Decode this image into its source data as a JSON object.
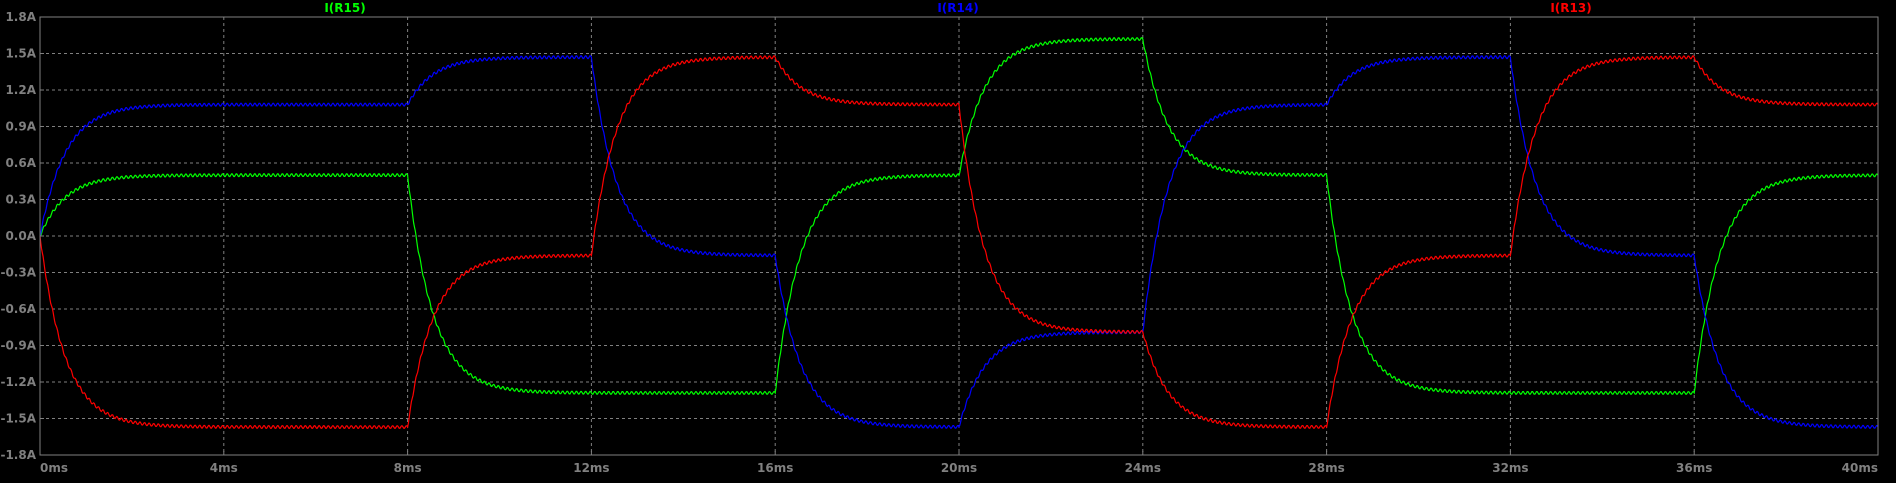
{
  "chart_data": {
    "type": "line",
    "title": "",
    "xlabel": "",
    "ylabel": "",
    "x_unit": "ms",
    "y_unit": "A",
    "xlim": [
      0,
      40
    ],
    "ylim": [
      -1.8,
      1.8
    ],
    "x_ticks": [
      0,
      4,
      8,
      12,
      16,
      20,
      24,
      28,
      32,
      36,
      40
    ],
    "x_tick_labels": [
      "0ms",
      "4ms",
      "8ms",
      "12ms",
      "16ms",
      "20ms",
      "24ms",
      "28ms",
      "32ms",
      "36ms",
      "40ms"
    ],
    "y_ticks": [
      1.8,
      1.5,
      1.2,
      0.9,
      0.6,
      0.3,
      0.0,
      -0.3,
      -0.6,
      -0.9,
      -1.2,
      -1.5,
      -1.8
    ],
    "y_tick_labels": [
      "1.8A",
      "1.5A",
      "1.2A",
      "0.9A",
      "0.6A",
      "0.3A",
      "0.0A",
      "-0.3A",
      "-0.6A",
      "-0.9A",
      "-1.2A",
      "-1.5A",
      "-1.8A"
    ],
    "grid": true,
    "legend_position": "top",
    "series": [
      {
        "name": "I(R15)",
        "color": "#00ff00",
        "ripple": 0.012,
        "start": 0.0,
        "segments": [
          {
            "t0": 0,
            "t1": 8,
            "target": 0.5
          },
          {
            "t0": 8,
            "t1": 16,
            "target": -1.29
          },
          {
            "t0": 16,
            "t1": 20,
            "target": 0.5
          },
          {
            "t0": 20,
            "t1": 24,
            "target": 1.62
          },
          {
            "t0": 24,
            "t1": 28,
            "target": 0.5
          },
          {
            "t0": 28,
            "t1": 36,
            "target": -1.29
          },
          {
            "t0": 36,
            "t1": 40,
            "target": 0.5
          }
        ]
      },
      {
        "name": "I(R14)",
        "color": "#0000ff",
        "ripple": 0.012,
        "start": 0.0,
        "segments": [
          {
            "t0": 0,
            "t1": 8,
            "target": 1.08
          },
          {
            "t0": 8,
            "t1": 12,
            "target": 1.47
          },
          {
            "t0": 12,
            "t1": 16,
            "target": -0.16
          },
          {
            "t0": 16,
            "t1": 20,
            "target": -1.57
          },
          {
            "t0": 20,
            "t1": 24,
            "target": -0.79
          },
          {
            "t0": 24,
            "t1": 28,
            "target": 1.08
          },
          {
            "t0": 28,
            "t1": 32,
            "target": 1.47
          },
          {
            "t0": 32,
            "t1": 36,
            "target": -0.16
          },
          {
            "t0": 36,
            "t1": 40,
            "target": -1.57
          }
        ]
      },
      {
        "name": "I(R13)",
        "color": "#ff0000",
        "ripple": 0.012,
        "start": 0.0,
        "segments": [
          {
            "t0": 0,
            "t1": 8,
            "target": -1.57
          },
          {
            "t0": 8,
            "t1": 12,
            "target": -0.16
          },
          {
            "t0": 12,
            "t1": 16,
            "target": 1.47
          },
          {
            "t0": 16,
            "t1": 20,
            "target": 1.08
          },
          {
            "t0": 20,
            "t1": 24,
            "target": -0.79
          },
          {
            "t0": 24,
            "t1": 28,
            "target": -1.57
          },
          {
            "t0": 28,
            "t1": 32,
            "target": -0.16
          },
          {
            "t0": 32,
            "t1": 36,
            "target": 1.47
          },
          {
            "t0": 36,
            "t1": 40,
            "target": 1.08
          }
        ]
      }
    ]
  }
}
